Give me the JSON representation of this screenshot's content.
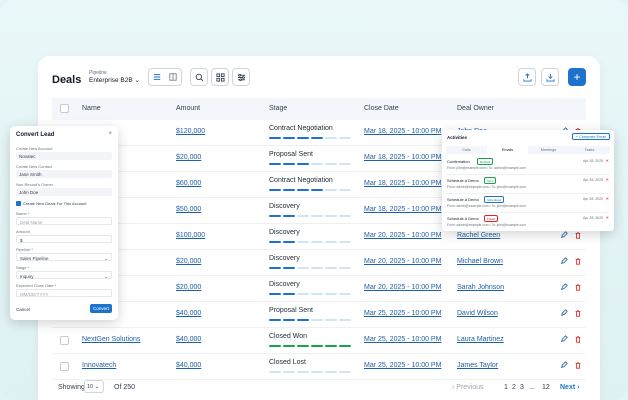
{
  "page": {
    "title": "Deals"
  },
  "pipeline": {
    "label": "Pipeline",
    "value": "Enterprise B2B"
  },
  "table": {
    "headers": [
      "Name",
      "Amount",
      "Stage",
      "Close Date",
      "Deal Owner"
    ],
    "rows": [
      {
        "name": "",
        "amount": "$120,000",
        "stage": "Contract Negotiation",
        "close": "Mar 18, 2025 - 10:00 PM",
        "owner": "John Doe",
        "steps": 4
      },
      {
        "name": "ons",
        "amount": "$20,000",
        "stage": "Proposal Sent",
        "close": "Mar 18, 2025 - 10:00 PM",
        "owner": "",
        "steps": 3
      },
      {
        "name": "",
        "amount": "$60,000",
        "stage": "Contract Negotiation",
        "close": "Mar 18, 2025 - 10:00 PM",
        "owner": "",
        "steps": 4
      },
      {
        "name": "al Press",
        "amount": "$50,000",
        "stage": "Discovery",
        "close": "Mar 18, 2025 - 10:00 PM",
        "owner": "",
        "steps": 2
      },
      {
        "name": "",
        "amount": "$100,000",
        "stage": "Discovery",
        "close": "Mar 20, 2025 - 10:00 PM",
        "owner": "Rachel Green",
        "steps": 2
      },
      {
        "name": "",
        "amount": "$20,000",
        "stage": "Discovery",
        "close": "Mar 20, 2025 - 10:00 PM",
        "owner": "Michael Brown",
        "steps": 2
      },
      {
        "name": "nics",
        "amount": "$20,000",
        "stage": "Discovery",
        "close": "Mar 20, 2025 - 10:00 PM",
        "owner": "Sarah Johnson",
        "steps": 2
      },
      {
        "name": "",
        "amount": "$40,000",
        "stage": "Proposal Sent",
        "close": "Mar 25, 2025 - 10:00 PM",
        "owner": "David Wilson",
        "steps": 3
      },
      {
        "name": "NextGen Solutions",
        "amount": "$40,000",
        "stage": "Closed Won",
        "close": "Mar 25, 2025 - 10:00 PM",
        "owner": "Laura Martinez",
        "steps": 6
      },
      {
        "name": "Innovatech",
        "amount": "$40,000",
        "stage": "Closed Lost",
        "close": "Mar 25, 2025 - 10:00 PM",
        "owner": "James Taylor",
        "steps": 6
      }
    ]
  },
  "footer": {
    "showing": "Showing",
    "per_page": "10",
    "of_total": "Of 250",
    "previous": "Previous",
    "p1": "1",
    "p2": "2",
    "p3": "3",
    "ellipsis": "...",
    "p12": "12",
    "next": "Next"
  },
  "convert": {
    "title": "Convert Lead",
    "close": "×",
    "l1": "Create New Account",
    "v1": "Novatec",
    "l2": "Create New Contact",
    "v2": "Jane Smith",
    "l3": "Non Record's Owner",
    "v3": "John Doe",
    "check": "Create New Deals For This Account",
    "l4": "Name *",
    "v4": "Deal Name",
    "l5": "Amount",
    "v5": "$",
    "l6": "Pipeline *",
    "v6": "Sales Pipeline",
    "l7": "Stage *",
    "v7": "Inquiry",
    "l8": "Expected Close Date *",
    "v8": "MM/DD/YYYY",
    "cancel": "Cancel",
    "convert": "Convert"
  },
  "activities": {
    "title": "Activities",
    "compose": "+ Compose Email",
    "tabs": [
      "Calls",
      "Emails",
      "Meetings",
      "Tasks"
    ],
    "items": [
      {
        "title": "Confirmation",
        "tag": "Replied",
        "tagc": "#16a34a",
        "date": "Apr 28, 2025",
        "sub": "From: john@example.com  •  To: admin@example.com"
      },
      {
        "title": "Schedule A Demo",
        "tag": "Sent",
        "tagc": "#16a34a",
        "date": "Apr 28, 2025",
        "sub": "From: admin@example.com  •  To: john@example.com"
      },
      {
        "title": "Schedule A Demo",
        "tag": "Scheduled",
        "tagc": "#1d73c9",
        "date": "Apr 28, 2025",
        "sub": "From: admin@example.com  •  To: john@example.com"
      },
      {
        "title": "Schedule A Demo",
        "tag": "Failed",
        "tagc": "#dc2626",
        "date": "Apr 28, 2025",
        "sub": "From: admin@example.com  •  To: john@example.com"
      }
    ]
  }
}
